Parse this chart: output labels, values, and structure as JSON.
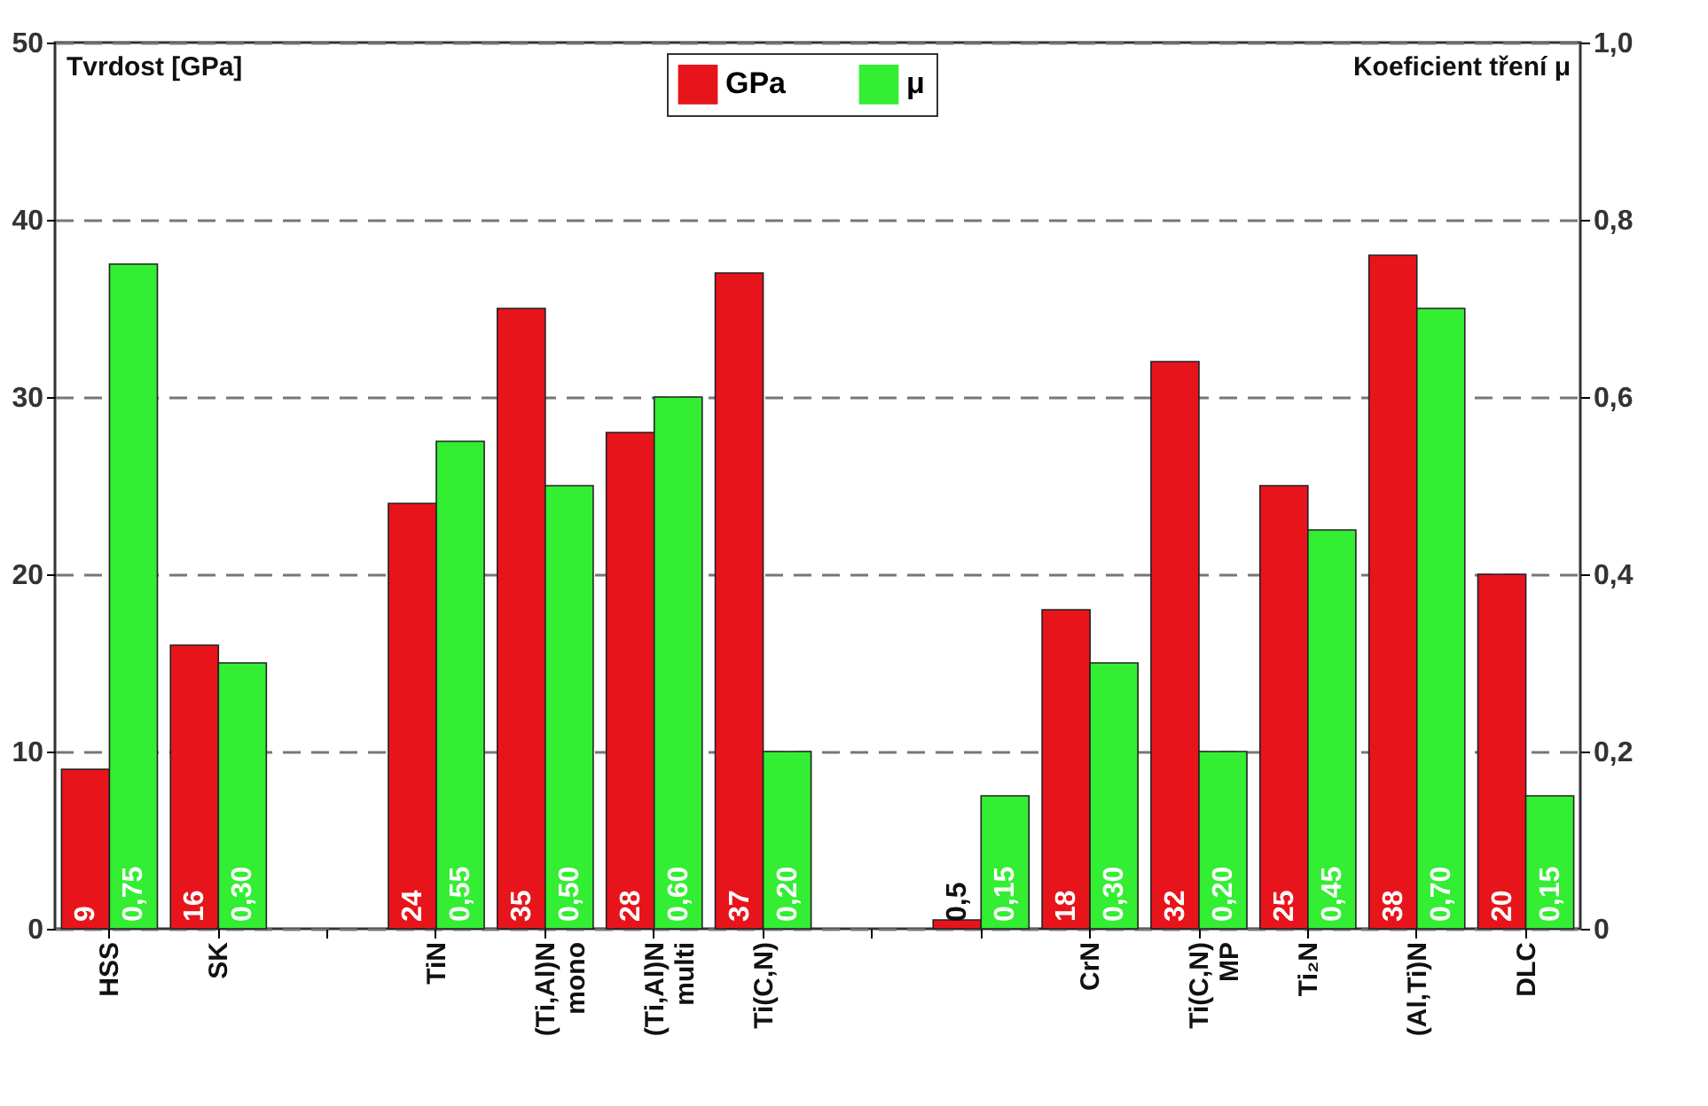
{
  "chart_data": {
    "type": "bar",
    "categories": [
      "HSS",
      "SK",
      null,
      "TiN",
      "(Ti,Al)N\nmono",
      "(Ti,Al)N\nmulti",
      "Ti(C,N)",
      null,
      null,
      "CrN",
      "Ti(C,N)\nMP",
      "Ti₂N",
      "(Al,Ti)N",
      "DLC"
    ],
    "series": [
      {
        "name": "GPa",
        "color": "#e8141b",
        "values": [
          9,
          16,
          null,
          24,
          35,
          28,
          37,
          null,
          0.5,
          18,
          32,
          25,
          38,
          20
        ],
        "value_labels": [
          "9",
          "16",
          null,
          "24",
          "35",
          "28",
          "37",
          null,
          "0,5",
          "18",
          "32",
          "25",
          "38",
          "20"
        ]
      },
      {
        "name": "μ",
        "color": "#33ee33",
        "axis": "y2",
        "values": [
          0.75,
          0.3,
          null,
          0.55,
          0.5,
          0.6,
          0.2,
          null,
          0.15,
          0.3,
          0.2,
          0.45,
          0.7,
          0.15
        ],
        "value_labels": [
          "0,75",
          "0,30",
          null,
          "0,55",
          "0,50",
          "0,60",
          "0,20",
          null,
          "0,15",
          "0,30",
          "0,20",
          "0,45",
          "0,70",
          "0,15"
        ]
      }
    ],
    "ylabel": "Tvrdost [GPa]",
    "y2label": "Koeficient tření μ",
    "ylim": [
      0,
      50
    ],
    "yticks": [
      0,
      10,
      20,
      30,
      40,
      50
    ],
    "y2lim": [
      0,
      1
    ],
    "y2ticks": [
      {
        "value": 0,
        "label": "0"
      },
      {
        "value": 0.2,
        "label": "0,2"
      },
      {
        "value": 0.4,
        "label": "0,4"
      },
      {
        "value": 0.6,
        "label": "0,6"
      },
      {
        "value": 0.8,
        "label": "0,8"
      },
      {
        "value": 1,
        "label": "1,0"
      }
    ],
    "grid": "y",
    "legend": "top"
  }
}
